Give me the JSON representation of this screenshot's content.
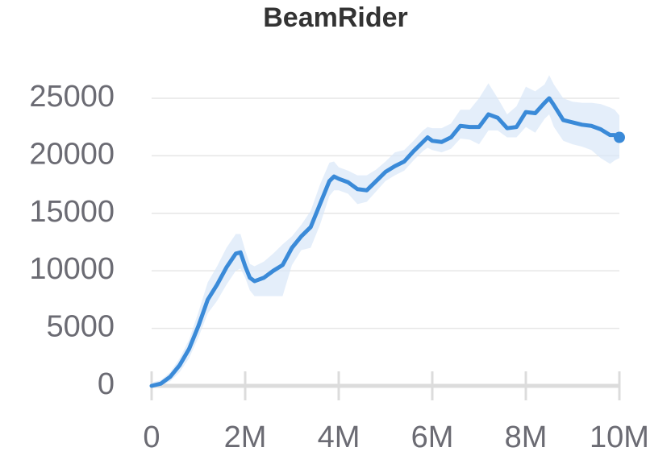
{
  "chart_data": {
    "type": "line",
    "title": "BeamRider",
    "color": "#3a8ad8",
    "band_color": "#d8e7f8",
    "x": [
      0,
      200000,
      400000,
      600000,
      800000,
      1000000,
      1200000,
      1400000,
      1600000,
      1800000,
      1900000,
      2000000,
      2100000,
      2200000,
      2400000,
      2600000,
      2800000,
      3000000,
      3200000,
      3400000,
      3600000,
      3800000,
      3900000,
      4000000,
      4200000,
      4400000,
      4600000,
      4800000,
      5000000,
      5200000,
      5400000,
      5600000,
      5800000,
      5900000,
      6000000,
      6200000,
      6400000,
      6600000,
      6800000,
      7000000,
      7200000,
      7400000,
      7600000,
      7800000,
      8000000,
      8200000,
      8400000,
      8500000,
      8600000,
      8800000,
      9000000,
      9200000,
      9400000,
      9600000,
      9800000,
      9900000,
      10000000
    ],
    "values": [
      0,
      200,
      800,
      1800,
      3200,
      5200,
      7500,
      8800,
      10300,
      11500,
      11600,
      10400,
      9400,
      9100,
      9400,
      10000,
      10500,
      12000,
      13000,
      13800,
      15800,
      17800,
      18200,
      18000,
      17700,
      17100,
      17000,
      17800,
      18600,
      19100,
      19500,
      20400,
      21200,
      21600,
      21300,
      21200,
      21600,
      22600,
      22500,
      22500,
      23600,
      23300,
      22400,
      22500,
      23800,
      23700,
      24600,
      25000,
      24400,
      23100,
      22900,
      22700,
      22600,
      22300,
      21800,
      21800,
      21600
    ],
    "band_lower": [
      0,
      0,
      400,
      1200,
      2400,
      4200,
      6300,
      7400,
      8800,
      10000,
      10200,
      9400,
      8300,
      7800,
      7800,
      7800,
      7800,
      10500,
      11800,
      12000,
      14000,
      16500,
      17000,
      17000,
      16700,
      15800,
      16000,
      16900,
      17800,
      18300,
      18700,
      19600,
      20400,
      20700,
      20500,
      20300,
      20600,
      21500,
      21400,
      21000,
      22200,
      22200,
      21600,
      21600,
      22500,
      22000,
      23200,
      23600,
      22500,
      21300,
      21000,
      20800,
      20500,
      19800,
      19300,
      19600,
      19800
    ],
    "band_upper": [
      300,
      500,
      1200,
      2400,
      4000,
      6400,
      9000,
      10400,
      12000,
      13200,
      13200,
      11800,
      10600,
      10400,
      10800,
      11500,
      12300,
      13000,
      14000,
      15200,
      17500,
      19400,
      19500,
      19000,
      18700,
      18300,
      18300,
      18800,
      19500,
      20300,
      20500,
      21300,
      22200,
      22500,
      22400,
      22400,
      22800,
      24000,
      24000,
      25000,
      26300,
      25000,
      23600,
      24300,
      26000,
      25600,
      26200,
      27000,
      26200,
      25000,
      24700,
      24600,
      24600,
      24500,
      24200,
      24000,
      23500
    ],
    "xlim": [
      0,
      10000000
    ],
    "xticks": [
      0,
      {
        "value": 2000000,
        "label": "2M"
      },
      {
        "value": 4000000,
        "label": "4M"
      },
      {
        "value": 6000000,
        "label": "6M"
      },
      {
        "value": 8000000,
        "label": "8M"
      },
      {
        "value": 10000000,
        "label": "10M"
      }
    ],
    "ylim": [
      0,
      27000
    ],
    "yticks": [
      0,
      5000,
      10000,
      15000,
      20000,
      25000
    ],
    "grid": true
  }
}
